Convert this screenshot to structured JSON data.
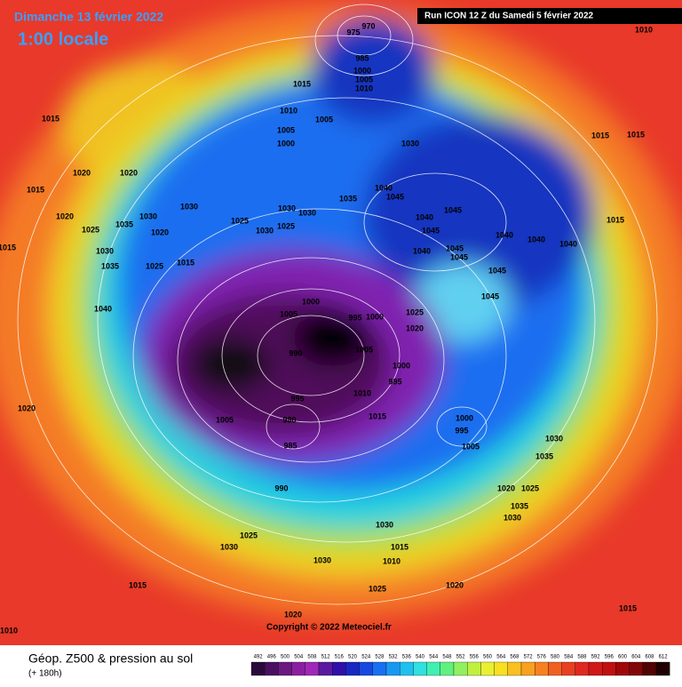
{
  "header": {
    "date": "Dimanche 13 février 2022",
    "time": "1:00 locale",
    "run": "Run ICON 12 Z du Samedi 5 février 2022"
  },
  "footer": {
    "title": "Géop. Z500 & pression au sol",
    "lead": "(+ 180h)",
    "copyright": "Copyright © 2022 Meteociel.fr"
  },
  "map": {
    "pressure_labels": [
      975,
      970,
      985,
      1000,
      1005,
      1010,
      1015,
      1010,
      1005,
      1005,
      1000,
      1030,
      1035,
      1040,
      1045,
      1045,
      1040,
      1045,
      1045,
      1040,
      1045,
      1040,
      1045,
      1040,
      1040,
      1045,
      1030,
      1030,
      1025,
      1030,
      1030,
      1025,
      1015,
      1025,
      1020,
      1030,
      1035,
      1030,
      1035,
      1040,
      1020,
      1020,
      1015,
      1020,
      1025,
      1015,
      1015,
      1020,
      1000,
      1005,
      995,
      1000,
      990,
      1005,
      1025,
      1020,
      1000,
      995,
      1010,
      995,
      980,
      985,
      1005,
      1015,
      1000,
      995,
      1005,
      990,
      1030,
      1035,
      1015,
      1015,
      1010,
      1015,
      1030,
      1015,
      1010,
      1030,
      1025,
      1030,
      1015,
      1025,
      1020,
      1020,
      1015,
      1010,
      1020,
      1025,
      1035,
      1030
    ]
  },
  "scale": {
    "values": [
      492,
      496,
      500,
      504,
      508,
      512,
      516,
      520,
      524,
      528,
      532,
      536,
      540,
      544,
      548,
      552,
      556,
      560,
      564,
      568,
      572,
      576,
      580,
      584,
      588,
      592,
      596,
      600,
      604,
      608,
      612
    ],
    "colors": [
      "#2a0a3a",
      "#4a1060",
      "#6a1a80",
      "#8a20a0",
      "#a028b8",
      "#5a1aa0",
      "#3010a8",
      "#1828c0",
      "#1848e0",
      "#1870f0",
      "#1898f0",
      "#20c0f0",
      "#30e0e0",
      "#40f0b0",
      "#60f080",
      "#90f060",
      "#c0f040",
      "#e8f030",
      "#f8e020",
      "#f8c020",
      "#f8a020",
      "#f88020",
      "#f06020",
      "#e84020",
      "#e02820",
      "#d01818",
      "#c01010",
      "#a00808",
      "#800808",
      "#500404",
      "#200000"
    ]
  }
}
